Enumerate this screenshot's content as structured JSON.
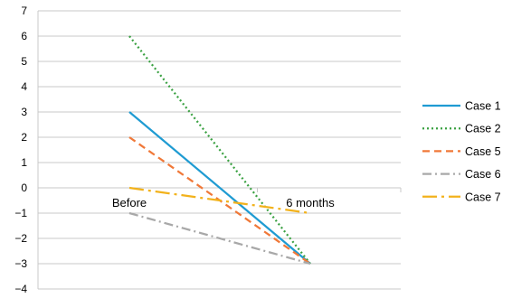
{
  "chart_data": {
    "type": "line",
    "categories": [
      "Before",
      "6 months"
    ],
    "ylim": [
      -4,
      7
    ],
    "yticks": [
      7,
      6,
      5,
      4,
      3,
      2,
      1,
      0,
      -1,
      -2,
      -3,
      -4
    ],
    "grid": true,
    "legend_position": "right",
    "series": [
      {
        "name": "Case 1",
        "values": [
          3,
          -3
        ],
        "color": "#1f9bd2",
        "dash": "solid"
      },
      {
        "name": "Case 2",
        "values": [
          6,
          -3
        ],
        "color": "#3aa142",
        "dash": "dotted"
      },
      {
        "name": "Case 5",
        "values": [
          2,
          -3
        ],
        "color": "#f07838",
        "dash": "dashed"
      },
      {
        "name": "Case 6",
        "values": [
          -1,
          -3
        ],
        "color": "#a8a8a8",
        "dash": "dashdot"
      },
      {
        "name": "Case 7",
        "values": [
          0,
          -1
        ],
        "color": "#f2b21c",
        "dash": "longdashdot"
      }
    ]
  }
}
